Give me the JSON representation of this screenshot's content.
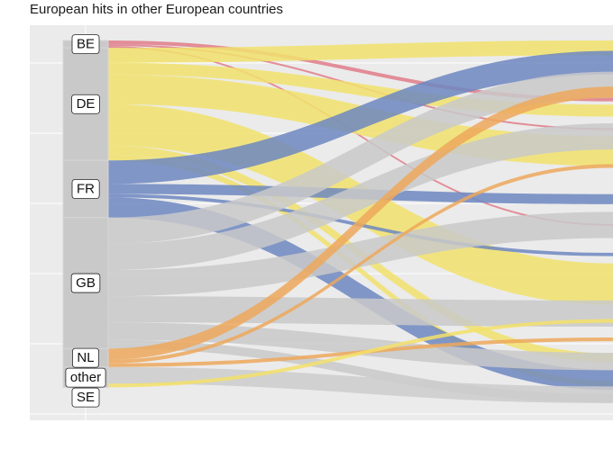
{
  "chart_data": {
    "type": "alluvial",
    "title": "European hits in other European countries",
    "xlabel": "",
    "ylabel": "",
    "grid": true,
    "legend": "none",
    "origin_strata": [
      "BE",
      "DE",
      "FR",
      "GB",
      "NL",
      "other",
      "SE"
    ],
    "origin_shares": {
      "BE": 0.02,
      "DE": 0.305,
      "FR": 0.155,
      "GB": 0.355,
      "NL": 0.05,
      "other": 0.045,
      "SE": 0.01
    },
    "colors": {
      "BE": "#e17c8a",
      "DE": "#f1e26c",
      "FR": "#6d87c1",
      "GB": "#c9c9c9",
      "NL": "#eda85c",
      "other": "#cccccc",
      "SE": "#f3e06a",
      "panel": "#ebebeb",
      "stratum": "#c9c9c9"
    },
    "flows": [
      {
        "from": "BE",
        "weight": 2,
        "to_frac": 0.16
      },
      {
        "from": "BE",
        "weight": 1,
        "to_frac": 0.24
      },
      {
        "from": "BE",
        "weight": 1,
        "to_frac": 0.5
      },
      {
        "from": "DE",
        "weight": 5,
        "to_frac": 0.02
      },
      {
        "from": "DE",
        "weight": 4,
        "to_frac": 0.19
      },
      {
        "from": "DE",
        "weight": 10,
        "to_frac": 0.3
      },
      {
        "from": "DE",
        "weight": 14,
        "to_frac": 0.66
      },
      {
        "from": "DE",
        "weight": 3,
        "to_frac": 0.86
      },
      {
        "from": "DE",
        "weight": 2,
        "to_frac": 0.93
      },
      {
        "from": "FR",
        "weight": 7,
        "to_frac": 0.06
      },
      {
        "from": "FR",
        "weight": 3,
        "to_frac": 0.43
      },
      {
        "from": "FR",
        "weight": 1,
        "to_frac": 0.58
      },
      {
        "from": "FR",
        "weight": 6,
        "to_frac": 0.92
      },
      {
        "from": "GB",
        "weight": 6,
        "to_frac": 0.12
      },
      {
        "from": "GB",
        "weight": 6,
        "to_frac": 0.26
      },
      {
        "from": "GB",
        "weight": 6,
        "to_frac": 0.5
      },
      {
        "from": "GB",
        "weight": 6,
        "to_frac": 0.74
      },
      {
        "from": "GB",
        "weight": 4,
        "to_frac": 0.87
      },
      {
        "from": "GB",
        "weight": 2,
        "to_frac": 0.97
      },
      {
        "from": "NL",
        "weight": 3,
        "to_frac": 0.14
      },
      {
        "from": "NL",
        "weight": 1,
        "to_frac": 0.34
      },
      {
        "from": "NL",
        "weight": 1,
        "to_frac": 0.81
      },
      {
        "from": "other",
        "weight": 2,
        "to_frac": 0.96
      },
      {
        "from": "SE",
        "weight": 1,
        "to_frac": 0.76
      }
    ]
  }
}
